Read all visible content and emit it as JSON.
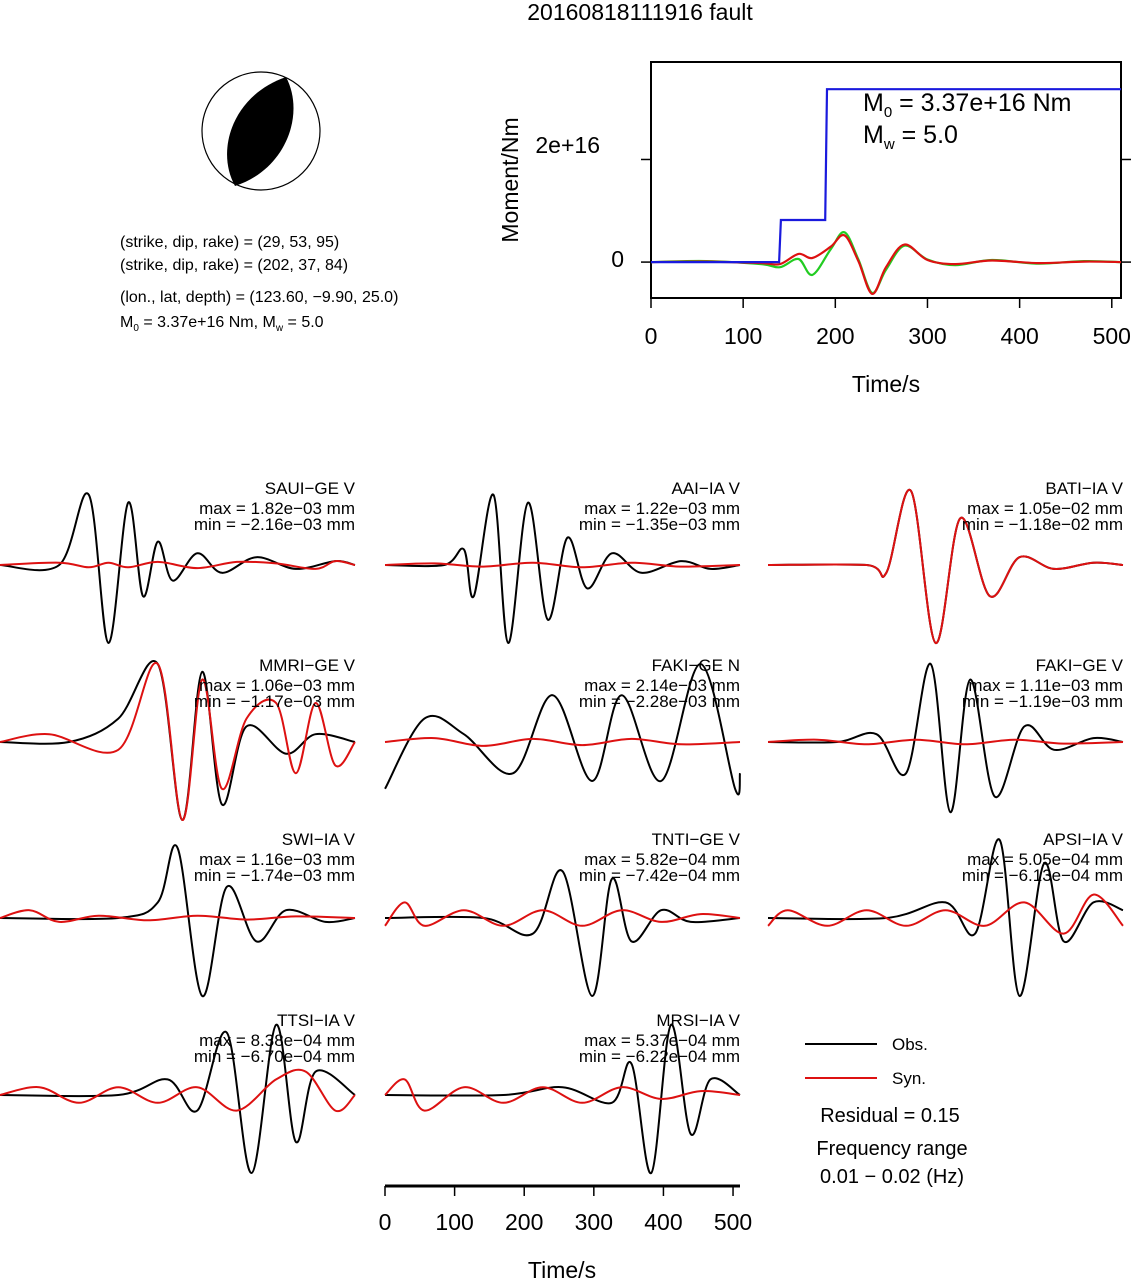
{
  "title": "20160818111916 fault",
  "colors": {
    "obs": "#000000",
    "syn": "#dd1111",
    "stf": "#1a1add",
    "stf_syn": "#22cc22"
  },
  "focal_params": {
    "plane1": "(strike, dip, rake) = (29, 53, 95)",
    "plane2": "(strike, dip, rake) = (202, 37, 84)",
    "location": "(lon., lat, depth) = (123.60, −9.90, 25.0)",
    "moment_line_m": "M",
    "moment_line_sub": "0",
    "moment_line_rest": " = 3.37e+16 Nm, M",
    "moment_line_sub2": "w",
    "moment_line_end": " = 5.0"
  },
  "stf_plot": {
    "ylabel": "Moment/Nm",
    "xlabel": "Time/s",
    "ytick_labels": [
      "2e+16",
      "0"
    ],
    "xtick_labels": [
      "0",
      "100",
      "200",
      "300",
      "400",
      "500"
    ],
    "annotation_m0_base": "M",
    "annotation_m0_sub": "0",
    "annotation_m0_rest": " = 3.37e+16 Nm",
    "annotation_mw_base": "M",
    "annotation_mw_sub": "w",
    "annotation_mw_rest": " = 5.0"
  },
  "waveform_axis": {
    "xlabel": "Time/s",
    "xtick_labels": [
      "0",
      "100",
      "200",
      "300",
      "400",
      "500"
    ]
  },
  "legend": {
    "obs_label": "Obs.",
    "syn_label": "Syn.",
    "residual": "Residual = 0.15",
    "freq_title": "Frequency range",
    "freq_range": "0.01 − 0.02 (Hz)"
  },
  "stations": [
    {
      "name": "SAUI−GE V",
      "max": "max = 1.82e−03 mm",
      "min": "min = −2.16e−03 mm"
    },
    {
      "name": "AAI−IA V",
      "max": "max = 1.22e−03 mm",
      "min": "min = −1.35e−03 mm"
    },
    {
      "name": "BATI−IA V",
      "max": "max = 1.05e−02 mm",
      "min": "min = −1.18e−02 mm"
    },
    {
      "name": "MMRI−GE V",
      "max": "max = 1.06e−03 mm",
      "min": "min = −1.17e−03 mm"
    },
    {
      "name": "FAKI−GE N",
      "max": "max = 2.14e−03 mm",
      "min": "min = −2.28e−03 mm"
    },
    {
      "name": "FAKI−GE V",
      "max": "max = 1.11e−03 mm",
      "min": "min = −1.19e−03 mm"
    },
    {
      "name": "SWI−IA V",
      "max": "max = 1.16e−03 mm",
      "min": "min = −1.74e−03 mm"
    },
    {
      "name": "TNTI−GE V",
      "max": "max = 5.82e−04 mm",
      "min": "min = −7.42e−04 mm"
    },
    {
      "name": "APSI−IA V",
      "max": "max = 5.05e−04 mm",
      "min": "min = −6.13e−04 mm"
    },
    {
      "name": "TTSI−IA V",
      "max": "max = 8.38e−04 mm",
      "min": "min = −6.70e−04 mm"
    },
    {
      "name": "MRSI−IA V",
      "max": "max = 5.37e−04 mm",
      "min": "min = −6.22e−04 mm"
    }
  ],
  "chart_data": [
    {
      "type": "line",
      "name": "source time function",
      "xlabel": "Time/s",
      "ylabel": "Moment/Nm",
      "xlim": [
        0,
        510
      ],
      "ylim": [
        -7000000000000000.0,
        3.9e+16
      ],
      "series": [
        {
          "name": "moment",
          "x": [
            0,
            139,
            141,
            189,
            191,
            510
          ],
          "y": [
            0,
            0,
            8200000000000000.0,
            8200000000000000.0,
            3.37e+16,
            3.37e+16
          ]
        },
        {
          "name": "obs",
          "x": [
            0,
            60,
            120,
            140,
            160,
            175,
            195,
            210,
            225,
            240,
            255,
            275,
            300,
            330,
            370,
            420,
            470,
            510
          ],
          "y": [
            0,
            200000000000000.0,
            -400000000000000.0,
            -1000000000000000.0,
            600000000000000.0,
            -2500000000000000.0,
            2500000000000000.0,
            5800000000000000.0,
            500000000000000.0,
            -6000000000000000.0,
            -1500000000000000.0,
            3200000000000000.0,
            500000000000000.0,
            -600000000000000.0,
            400000000000000.0,
            -300000000000000.0,
            200000000000000.0,
            0
          ]
        },
        {
          "name": "syn",
          "x": [
            0,
            60,
            120,
            140,
            160,
            175,
            195,
            210,
            225,
            240,
            255,
            275,
            300,
            330,
            370,
            420,
            470,
            510
          ],
          "y": [
            0,
            100000000000000.0,
            -200000000000000.0,
            -400000000000000.0,
            1600000000000000.0,
            800000000000000.0,
            3000000000000000.0,
            5200000000000000.0,
            200000000000000.0,
            -6200000000000000.0,
            -1000000000000000.0,
            3400000000000000.0,
            400000000000000.0,
            -400000000000000.0,
            300000000000000.0,
            -200000000000000.0,
            100000000000000.0,
            0
          ]
        }
      ]
    },
    {
      "type": "line",
      "name": "waveform comparison",
      "xlabel": "Time/s",
      "xlim": [
        0,
        510
      ],
      "series_note": "normalized obs/syn traces per station",
      "stations": [
        {
          "obs": {
            "x": [
              0,
              60,
              90,
              110,
              130,
              145,
              160,
              175,
              200,
              225,
              260,
              300,
              340,
              360
            ],
            "y": [
              0,
              0,
              0.9,
              -1.0,
              0.8,
              -0.4,
              0.3,
              -0.2,
              0.15,
              -0.1,
              0.1,
              -0.05,
              0.05,
              0
            ]
          },
          "syn": {
            "x": [
              0,
              60,
              90,
              110,
              130,
              160,
              200,
              240,
              280,
              320,
              340,
              360
            ],
            "y": [
              0,
              0.03,
              -0.03,
              0.03,
              -0.03,
              0.04,
              -0.04,
              0.04,
              0.02,
              -0.05,
              0.05,
              0
            ]
          }
        },
        {
          "obs": {
            "x": [
              0,
              60,
              80,
              90,
              110,
              125,
              145,
              165,
              185,
              205,
              230,
              260,
              300,
              330,
              360
            ],
            "y": [
              0,
              0,
              0.2,
              -0.4,
              0.9,
              -1.0,
              0.8,
              -0.7,
              0.35,
              -0.3,
              0.15,
              -0.1,
              0.05,
              -0.05,
              0
            ]
          },
          "syn": {
            "x": [
              0,
              50,
              100,
              150,
              200,
              250,
              300,
              360
            ],
            "y": [
              0,
              0.02,
              -0.02,
              0.03,
              -0.03,
              0.03,
              -0.02,
              0
            ]
          }
        },
        {
          "obs": {
            "x": [
              0,
              100,
              120,
              145,
              170,
              195,
              225,
              255,
              290,
              330,
              360
            ],
            "y": [
              0,
              0,
              -0.1,
              0.95,
              -1.0,
              0.6,
              -0.4,
              0.1,
              -0.05,
              0.03,
              0
            ]
          },
          "syn": {
            "x": [
              0,
              100,
              120,
              145,
              170,
              195,
              225,
              255,
              290,
              330,
              360
            ],
            "y": [
              0,
              0,
              -0.1,
              0.95,
              -1.0,
              0.6,
              -0.4,
              0.1,
              -0.05,
              0.03,
              0
            ]
          }
        },
        {
          "obs": {
            "x": [
              0,
              70,
              120,
              160,
              185,
              205,
              225,
              250,
              290,
              320,
              360
            ],
            "y": [
              0,
              0,
              0.3,
              1.0,
              -1.0,
              0.9,
              -0.8,
              0.2,
              -0.15,
              0.1,
              0
            ]
          },
          "syn": {
            "x": [
              0,
              50,
              120,
              160,
              185,
              205,
              225,
              250,
              280,
              300,
              320,
              340,
              360
            ],
            "y": [
              0,
              0.1,
              -0.1,
              1.0,
              -1.0,
              0.8,
              -0.6,
              0.3,
              0.5,
              -0.4,
              0.5,
              -0.3,
              0
            ]
          }
        },
        {
          "obs": {
            "x": [
              0,
              40,
              80,
              130,
              170,
              210,
              240,
              280,
              320,
              355,
              360
            ],
            "y": [
              -0.6,
              0.3,
              0.1,
              -0.4,
              0.6,
              -0.5,
              0.6,
              -0.5,
              1.0,
              -0.6,
              -0.4
            ]
          },
          "syn": {
            "x": [
              0,
              50,
              100,
              150,
              200,
              250,
              300,
              360
            ],
            "y": [
              0,
              0.05,
              -0.05,
              0.04,
              -0.04,
              0.04,
              -0.03,
              0
            ]
          }
        },
        {
          "obs": {
            "x": [
              0,
              70,
              110,
              140,
              165,
              185,
              205,
              230,
              260,
              290,
              330,
              360
            ],
            "y": [
              0,
              0,
              0.1,
              -0.4,
              1.0,
              -0.9,
              0.8,
              -0.7,
              0.2,
              -0.1,
              0.05,
              0
            ]
          },
          "syn": {
            "x": [
              0,
              50,
              100,
              150,
              200,
              250,
              300,
              360
            ],
            "y": [
              0,
              0.03,
              -0.03,
              0.03,
              -0.03,
              0.03,
              -0.02,
              0
            ]
          }
        },
        {
          "obs": {
            "x": [
              0,
              120,
              160,
              180,
              205,
              230,
              260,
              290,
              330,
              360
            ],
            "y": [
              0,
              0,
              0.2,
              0.9,
              -1.0,
              0.4,
              -0.3,
              0.1,
              -0.05,
              0
            ]
          },
          "syn": {
            "x": [
              0,
              30,
              60,
              100,
              150,
              200,
              250,
              300,
              360
            ],
            "y": [
              0,
              0.1,
              -0.05,
              0.03,
              -0.03,
              0.03,
              -0.02,
              0.02,
              0
            ]
          }
        },
        {
          "obs": {
            "x": [
              0,
              100,
              150,
              180,
              210,
              230,
              250,
              280,
              310,
              360
            ],
            "y": [
              0,
              0,
              -0.2,
              0.6,
              -1.0,
              0.5,
              -0.3,
              0.1,
              -0.05,
              0
            ]
          },
          "syn": {
            "x": [
              0,
              20,
              40,
              80,
              120,
              160,
              200,
              240,
              280,
              320,
              360
            ],
            "y": [
              -0.1,
              0.2,
              -0.1,
              0.1,
              -0.1,
              0.1,
              -0.1,
              0.1,
              -0.05,
              0.05,
              0
            ]
          }
        },
        {
          "obs": {
            "x": [
              0,
              120,
              180,
              210,
              235,
              255,
              280,
              300,
              330,
              360
            ],
            "y": [
              0,
              0,
              0.2,
              -0.2,
              1.0,
              -1.0,
              0.7,
              -0.3,
              0.2,
              0.1
            ]
          },
          "syn": {
            "x": [
              0,
              20,
              60,
              100,
              140,
              180,
              220,
              260,
              300,
              330,
              360
            ],
            "y": [
              -0.1,
              0.1,
              -0.1,
              0.1,
              -0.1,
              0.1,
              -0.1,
              0.2,
              -0.2,
              0.3,
              -0.1
            ]
          }
        },
        {
          "obs": {
            "x": [
              0,
              120,
              170,
              200,
              230,
              255,
              280,
              300,
              320,
              360
            ],
            "y": [
              0,
              0,
              0.2,
              -0.2,
              0.8,
              -1.0,
              0.9,
              -0.6,
              0.3,
              0
            ]
          },
          "syn": {
            "x": [
              0,
              40,
              80,
              120,
              160,
              200,
              240,
              280,
              310,
              340,
              360
            ],
            "y": [
              0,
              0.1,
              -0.1,
              0.1,
              -0.1,
              0.1,
              -0.2,
              0.2,
              0.3,
              -0.2,
              0
            ]
          }
        },
        {
          "obs": {
            "x": [
              0,
              120,
              180,
              230,
              250,
              270,
              290,
              310,
              330,
              360
            ],
            "y": [
              0,
              0,
              0.1,
              -0.1,
              0.4,
              -1.0,
              0.9,
              -0.5,
              0.2,
              0
            ]
          },
          "syn": {
            "x": [
              0,
              20,
              40,
              80,
              120,
              160,
              200,
              240,
              280,
              320,
              360
            ],
            "y": [
              0,
              0.2,
              -0.2,
              0.1,
              -0.1,
              0.1,
              -0.1,
              0.1,
              -0.05,
              0.05,
              0
            ]
          }
        }
      ]
    }
  ]
}
